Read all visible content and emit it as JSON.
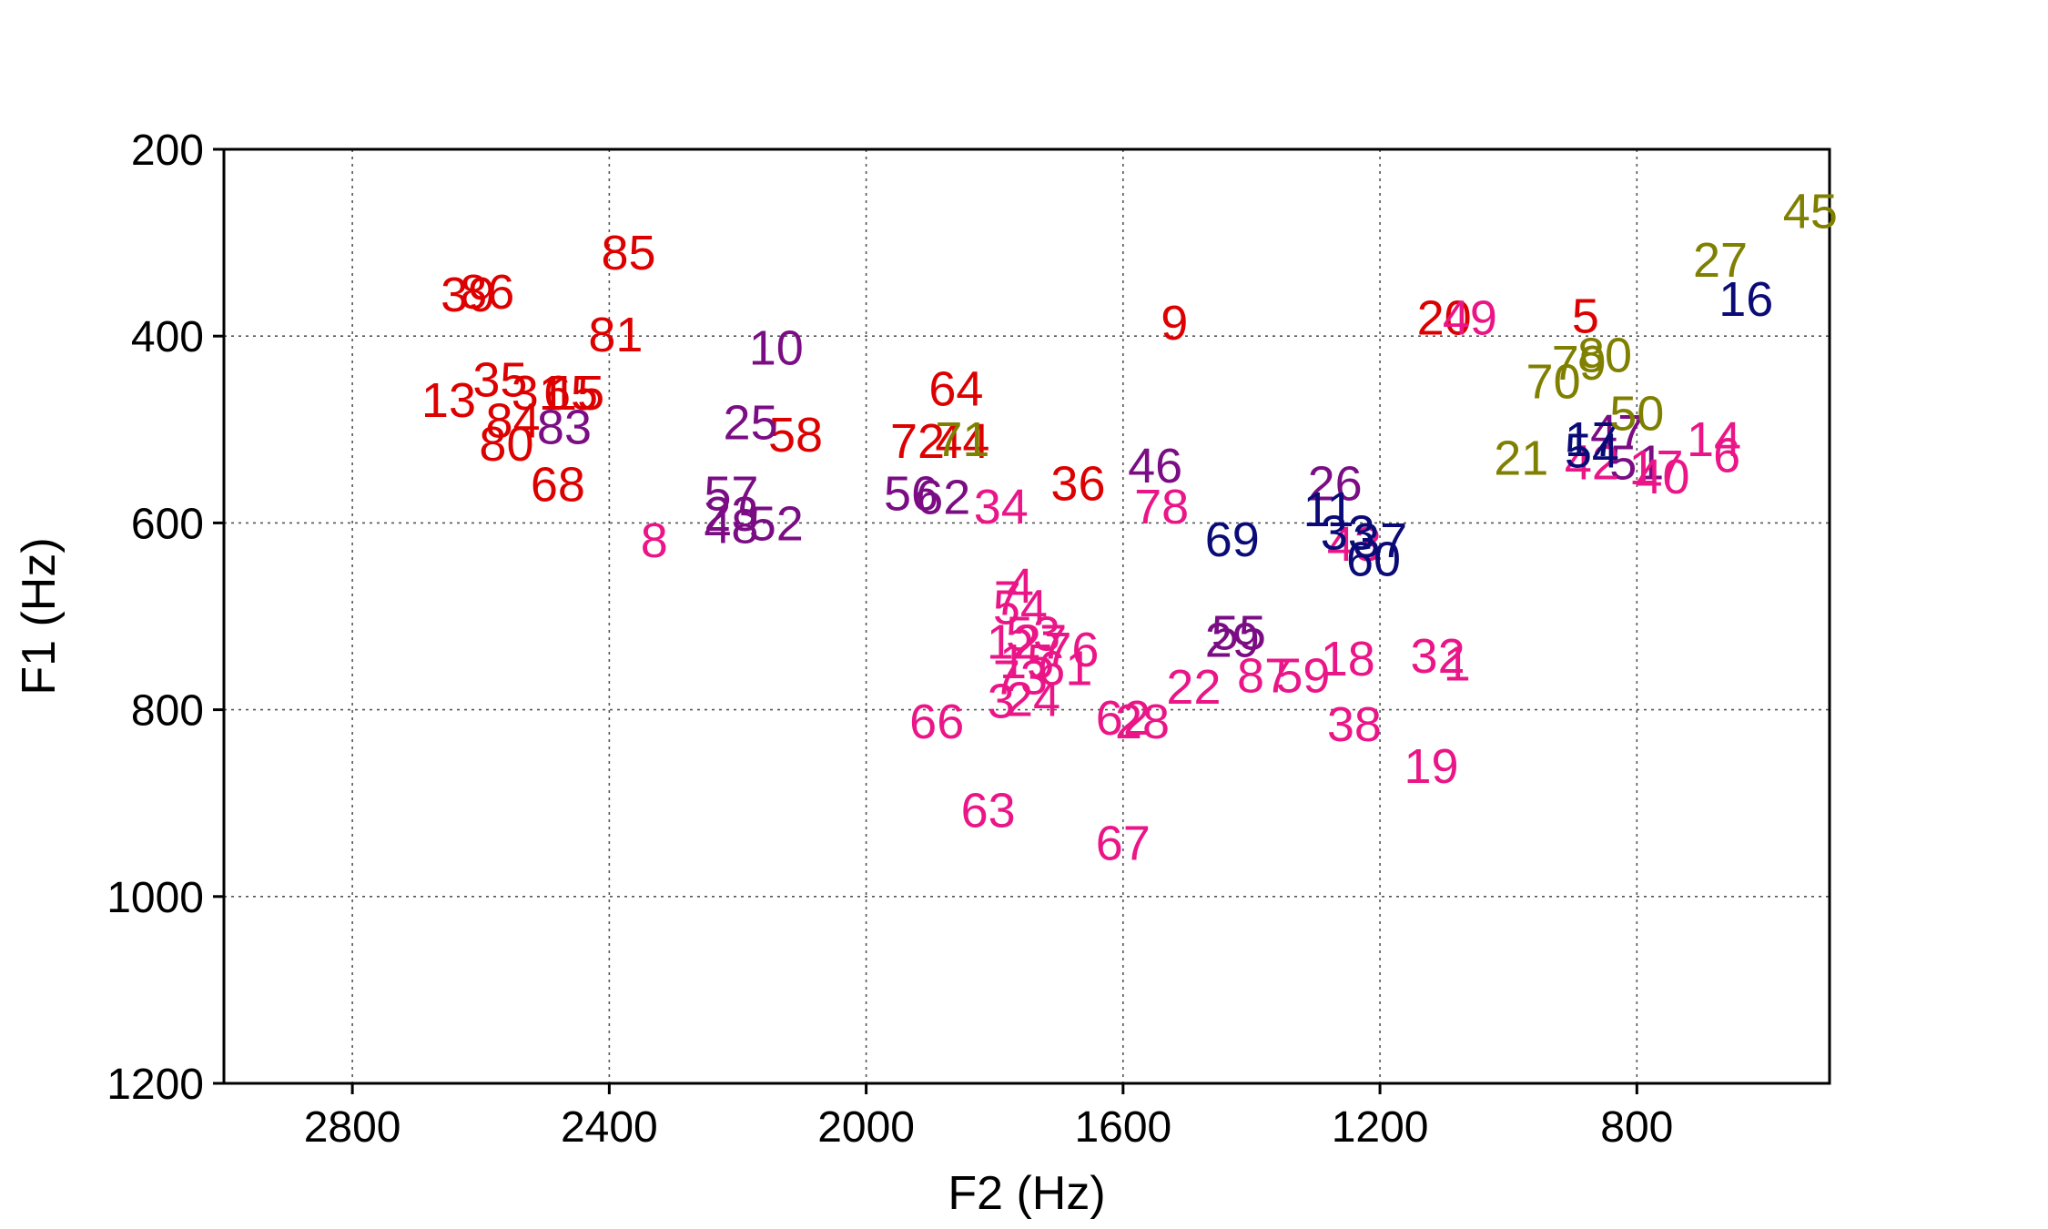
{
  "chart_data": {
    "type": "scatter",
    "xlabel": "F2 (Hz)",
    "ylabel": "F1 (Hz)",
    "xlim": [
      3000,
      500
    ],
    "ylim": [
      200,
      1200
    ],
    "x_reversed": true,
    "y_reversed": true,
    "xticks": [
      2800,
      2400,
      2000,
      1600,
      1200,
      800
    ],
    "yticks": [
      200,
      400,
      600,
      800,
      1000,
      1200
    ],
    "xtick_labels": [
      "2800",
      "2400",
      "2000",
      "1600",
      "1200",
      "800"
    ],
    "ytick_labels": [
      "200",
      "400",
      "600",
      "800",
      "1000",
      "1200"
    ],
    "grid": true,
    "marker": "text-label",
    "colors": {
      "red": "#dd0000",
      "purple": "#7b0d84",
      "pink": "#ea1587",
      "navy": "#0b0b78",
      "olive": "#7f7f00"
    },
    "series": [
      {
        "color_key": "red",
        "points": [
          {
            "label": "85",
            "x": 2370,
            "y": 310
          },
          {
            "label": "39",
            "x": 2620,
            "y": 355
          },
          {
            "label": "86",
            "x": 2590,
            "y": 352
          },
          {
            "label": "81",
            "x": 2390,
            "y": 398
          },
          {
            "label": "35",
            "x": 2570,
            "y": 446
          },
          {
            "label": "13",
            "x": 2650,
            "y": 468
          },
          {
            "label": "31",
            "x": 2510,
            "y": 460
          },
          {
            "label": "65",
            "x": 2460,
            "y": 460
          },
          {
            "label": "15",
            "x": 2450,
            "y": 460
          },
          {
            "label": "84",
            "x": 2550,
            "y": 490
          },
          {
            "label": "80",
            "x": 2560,
            "y": 515
          },
          {
            "label": "68",
            "x": 2480,
            "y": 558
          },
          {
            "label": "58",
            "x": 2110,
            "y": 505
          },
          {
            "label": "64",
            "x": 1860,
            "y": 456
          },
          {
            "label": "72",
            "x": 1920,
            "y": 512
          },
          {
            "label": "44",
            "x": 1850,
            "y": 512
          },
          {
            "label": "36",
            "x": 1670,
            "y": 557
          },
          {
            "label": "9",
            "x": 1520,
            "y": 385
          },
          {
            "label": "20",
            "x": 1100,
            "y": 380
          },
          {
            "label": "5",
            "x": 880,
            "y": 378
          }
        ]
      },
      {
        "color_key": "purple",
        "points": [
          {
            "label": "10",
            "x": 2140,
            "y": 412
          },
          {
            "label": "25",
            "x": 2180,
            "y": 492
          },
          {
            "label": "83",
            "x": 2470,
            "y": 497
          },
          {
            "label": "57",
            "x": 2210,
            "y": 568
          },
          {
            "label": "23",
            "x": 2210,
            "y": 590
          },
          {
            "label": "48",
            "x": 2210,
            "y": 603
          },
          {
            "label": "52",
            "x": 2140,
            "y": 600
          },
          {
            "label": "56",
            "x": 1930,
            "y": 568
          },
          {
            "label": "62",
            "x": 1880,
            "y": 572
          },
          {
            "label": "46",
            "x": 1550,
            "y": 538
          },
          {
            "label": "26",
            "x": 1270,
            "y": 557
          },
          {
            "label": "55",
            "x": 1420,
            "y": 717
          },
          {
            "label": "29",
            "x": 1430,
            "y": 725
          },
          {
            "label": "47",
            "x": 830,
            "y": 502
          },
          {
            "label": "51",
            "x": 800,
            "y": 535
          }
        ]
      },
      {
        "color_key": "pink",
        "points": [
          {
            "label": "8",
            "x": 2330,
            "y": 618
          },
          {
            "label": "34",
            "x": 1790,
            "y": 582
          },
          {
            "label": "78",
            "x": 1540,
            "y": 582
          },
          {
            "label": "4",
            "x": 1760,
            "y": 667
          },
          {
            "label": "7",
            "x": 1780,
            "y": 680
          },
          {
            "label": "54",
            "x": 1760,
            "y": 690
          },
          {
            "label": "53",
            "x": 1740,
            "y": 718
          },
          {
            "label": "12",
            "x": 1770,
            "y": 727
          },
          {
            "label": "27",
            "x": 1730,
            "y": 727
          },
          {
            "label": "76",
            "x": 1680,
            "y": 735
          },
          {
            "label": "15",
            "x": 1750,
            "y": 748
          },
          {
            "label": "61",
            "x": 1690,
            "y": 755
          },
          {
            "label": "73",
            "x": 1760,
            "y": 765
          },
          {
            "label": "3",
            "x": 1790,
            "y": 790
          },
          {
            "label": "24",
            "x": 1740,
            "y": 788
          },
          {
            "label": "66",
            "x": 1890,
            "y": 812
          },
          {
            "label": "63",
            "x": 1810,
            "y": 907
          },
          {
            "label": "62",
            "x": 1600,
            "y": 808
          },
          {
            "label": "28",
            "x": 1570,
            "y": 812
          },
          {
            "label": "67",
            "x": 1600,
            "y": 942
          },
          {
            "label": "22",
            "x": 1490,
            "y": 775
          },
          {
            "label": "87",
            "x": 1380,
            "y": 763
          },
          {
            "label": "59",
            "x": 1320,
            "y": 763
          },
          {
            "label": "18",
            "x": 1250,
            "y": 745
          },
          {
            "label": "43",
            "x": 1240,
            "y": 622
          },
          {
            "label": "38",
            "x": 1240,
            "y": 815
          },
          {
            "label": "32",
            "x": 1110,
            "y": 742
          },
          {
            "label": "1",
            "x": 1080,
            "y": 750
          },
          {
            "label": "19",
            "x": 1120,
            "y": 860
          },
          {
            "label": "49",
            "x": 1060,
            "y": 380
          },
          {
            "label": "42",
            "x": 870,
            "y": 535
          },
          {
            "label": "17",
            "x": 770,
            "y": 540
          },
          {
            "label": "40",
            "x": 760,
            "y": 550
          },
          {
            "label": "14",
            "x": 680,
            "y": 510
          },
          {
            "label": "6",
            "x": 660,
            "y": 527
          }
        ]
      },
      {
        "color_key": "navy",
        "points": [
          {
            "label": "69",
            "x": 1430,
            "y": 617
          },
          {
            "label": "11",
            "x": 1280,
            "y": 585
          },
          {
            "label": "33",
            "x": 1250,
            "y": 610
          },
          {
            "label": "37",
            "x": 1200,
            "y": 618
          },
          {
            "label": "60",
            "x": 1210,
            "y": 638
          },
          {
            "label": "16",
            "x": 630,
            "y": 360
          },
          {
            "label": "17",
            "x": 870,
            "y": 510
          },
          {
            "label": "54",
            "x": 870,
            "y": 522
          }
        ]
      },
      {
        "color_key": "olive",
        "points": [
          {
            "label": "45",
            "x": 530,
            "y": 266
          },
          {
            "label": "27",
            "x": 670,
            "y": 318
          },
          {
            "label": "79",
            "x": 890,
            "y": 428
          },
          {
            "label": "80",
            "x": 850,
            "y": 420
          },
          {
            "label": "70",
            "x": 930,
            "y": 448
          },
          {
            "label": "50",
            "x": 800,
            "y": 482
          },
          {
            "label": "21",
            "x": 980,
            "y": 530
          },
          {
            "label": "71",
            "x": 1850,
            "y": 510
          }
        ]
      }
    ]
  }
}
